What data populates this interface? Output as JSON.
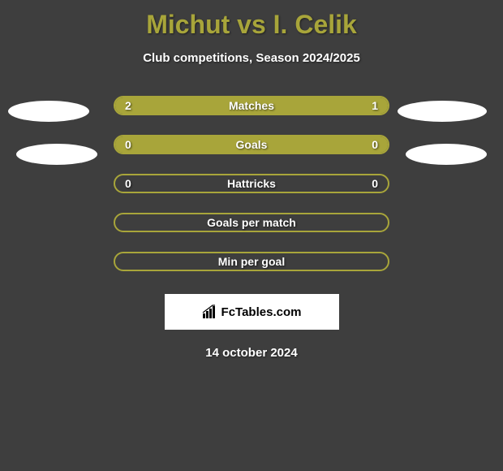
{
  "header": {
    "title": "Michut vs I. Celik",
    "subtitle": "Club competitions, Season 2024/2025"
  },
  "stats": [
    {
      "label": "Matches",
      "left_value": "2",
      "right_value": "1",
      "left_width_pct": 66.67,
      "right_width_pct": 33.33,
      "show_values": true
    },
    {
      "label": "Goals",
      "left_value": "0",
      "right_value": "0",
      "left_width_pct": 100,
      "right_width_pct": 0,
      "show_values": true,
      "full_fill": true
    },
    {
      "label": "Hattricks",
      "left_value": "0",
      "right_value": "0",
      "left_width_pct": 0,
      "right_width_pct": 0,
      "show_values": true
    },
    {
      "label": "Goals per match",
      "left_value": "",
      "right_value": "",
      "left_width_pct": 0,
      "right_width_pct": 0,
      "show_values": false
    },
    {
      "label": "Min per goal",
      "left_value": "",
      "right_value": "",
      "left_width_pct": 0,
      "right_width_pct": 0,
      "show_values": false
    }
  ],
  "footer": {
    "site_name": "FcTables.com",
    "date": "14 october 2024"
  },
  "colors": {
    "background": "#3e3e3e",
    "accent": "#a8a53a",
    "text": "#ffffff",
    "box_bg": "#ffffff"
  }
}
